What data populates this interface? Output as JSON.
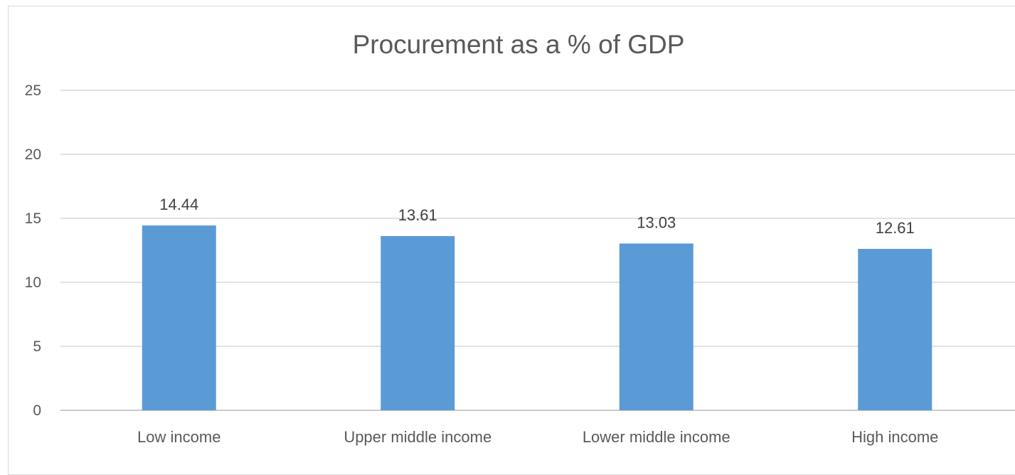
{
  "chart_data": {
    "type": "bar",
    "title": "Procurement as a % of GDP",
    "xlabel": "",
    "ylabel": "",
    "categories": [
      "Low income",
      "Upper middle income",
      "Lower middle income",
      "High income"
    ],
    "values": [
      14.44,
      13.61,
      13.03,
      12.61
    ],
    "data_labels": [
      "14.44",
      "13.61",
      "13.03",
      "12.61"
    ],
    "ylim": [
      0,
      25
    ],
    "yticks": [
      "0",
      "5",
      "10",
      "15",
      "20",
      "25"
    ],
    "grid": true,
    "legend": "none",
    "bar_color": "#5b9bd5",
    "grid_color": "#d9d9d9"
  }
}
